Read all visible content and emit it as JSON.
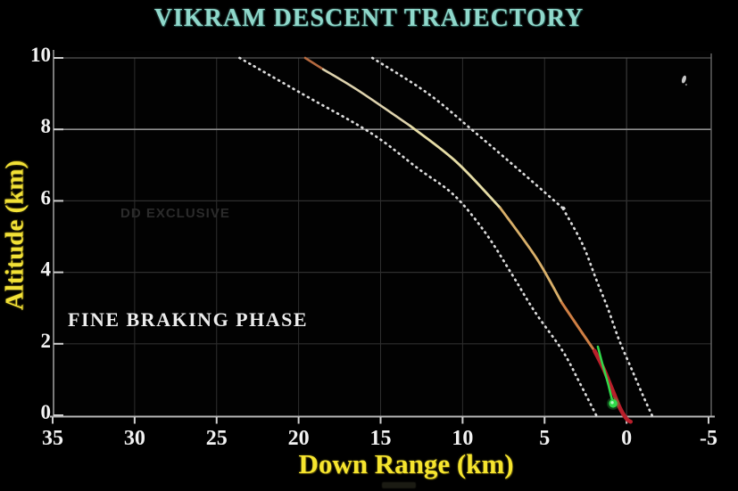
{
  "title": "VIKRAM DESCENT TRAJECTORY",
  "watermark": "DD EXCLUSIVE",
  "phase_label": "FINE BRAKING PHASE",
  "colors": {
    "background": "#000000",
    "title": "#8fd8cb",
    "axis_titles": "#f4e433",
    "tick_labels": "#f2f2f2",
    "grid_minor": "#2e2e2e",
    "grid_8km": "#8e8e8e",
    "grid_10km": "#555555",
    "axis_line": "#9a9a9a",
    "corridor_dotted": "#ececec",
    "actual_red": "#b81f2b",
    "deviation_green": "#2fd94a"
  },
  "chart_data": {
    "type": "line",
    "title": "VIKRAM DESCENT TRAJECTORY",
    "xlabel": "Down Range (km)",
    "ylabel": "Altitude (km)",
    "xlim": [
      35,
      -5
    ],
    "x_axis_reversed": true,
    "ylim": [
      0,
      10
    ],
    "x_ticks": [
      35,
      30,
      25,
      20,
      15,
      10,
      5,
      0,
      -5
    ],
    "y_ticks": [
      10,
      8,
      6,
      4,
      2,
      0
    ],
    "grid": true,
    "annotations": [
      "FINE BRAKING PHASE",
      "DD EXCLUSIVE"
    ],
    "series": [
      {
        "name": "planned-corridor-left",
        "style": "dotted",
        "color": "#ececec",
        "width": 2.7,
        "points": [
          [
            23.6,
            10
          ],
          [
            19.8,
            9.0
          ],
          [
            15.6,
            7.9
          ],
          [
            12.7,
            6.9
          ],
          [
            10.5,
            6.15
          ],
          [
            8.6,
            5.1
          ],
          [
            7.0,
            3.95
          ],
          [
            5.6,
            2.9
          ],
          [
            3.9,
            1.8
          ],
          [
            2.85,
            0.9
          ],
          [
            1.85,
            0
          ]
        ]
      },
      {
        "name": "planned-corridor-right",
        "style": "dotted",
        "color": "#ececec",
        "width": 2.7,
        "points": [
          [
            15.5,
            10
          ],
          [
            12.1,
            9.0
          ],
          [
            9.2,
            7.9
          ],
          [
            6.4,
            6.8
          ],
          [
            3.9,
            5.8
          ],
          [
            3.9,
            5.8
          ],
          [
            2.7,
            4.8
          ],
          [
            1.85,
            3.8
          ],
          [
            1.15,
            3.0
          ],
          [
            0.45,
            2.1
          ],
          [
            -0.3,
            1.3
          ],
          [
            -1.05,
            0.5
          ],
          [
            -1.55,
            0
          ]
        ]
      },
      {
        "name": "actual-trajectory",
        "style": "solid-multicolor",
        "segments": [
          {
            "color": "#b56a40",
            "width": 2.6,
            "points": [
              [
                19.6,
                10
              ],
              [
                18.5,
                9.68
              ]
            ]
          },
          {
            "color": "#ded3ae",
            "width": 2.6,
            "points": [
              [
                18.5,
                9.68
              ],
              [
                16.4,
                9.1
              ],
              [
                13.2,
                8.1
              ]
            ]
          },
          {
            "color": "#e6dda6",
            "width": 2.8,
            "points": [
              [
                13.2,
                8.1
              ],
              [
                10.4,
                7.1
              ],
              [
                7.7,
                5.8
              ]
            ]
          },
          {
            "color": "#d9b06a",
            "width": 2.8,
            "points": [
              [
                7.7,
                5.8
              ],
              [
                5.5,
                4.4
              ],
              [
                3.95,
                3.15
              ]
            ]
          },
          {
            "color": "#cf7f44",
            "width": 3.0,
            "points": [
              [
                3.95,
                3.15
              ],
              [
                2.7,
                2.3
              ],
              [
                1.95,
                1.8
              ]
            ]
          },
          {
            "color": "#b81f2b",
            "width": 4.6,
            "points": [
              [
                1.95,
                1.8
              ],
              [
                1.4,
                1.3
              ],
              [
                0.9,
                0.75
              ],
              [
                0.4,
                0.2
              ],
              [
                0.0,
                -0.1
              ],
              [
                -0.25,
                -0.18
              ]
            ]
          }
        ]
      },
      {
        "name": "deviation-branch",
        "style": "solid",
        "color": "#2fd94a",
        "width": 2.5,
        "points": [
          [
            1.75,
            1.92
          ],
          [
            1.45,
            1.4
          ],
          [
            1.15,
            0.92
          ],
          [
            0.95,
            0.55
          ],
          [
            0.82,
            0.33
          ]
        ]
      }
    ],
    "endpoint_marker": {
      "x_km": 0.82,
      "alt_km": 0.33,
      "color": "#2fd94a"
    },
    "lander_marker": {
      "x_km": -3.5,
      "alt_km": 9.4
    }
  }
}
